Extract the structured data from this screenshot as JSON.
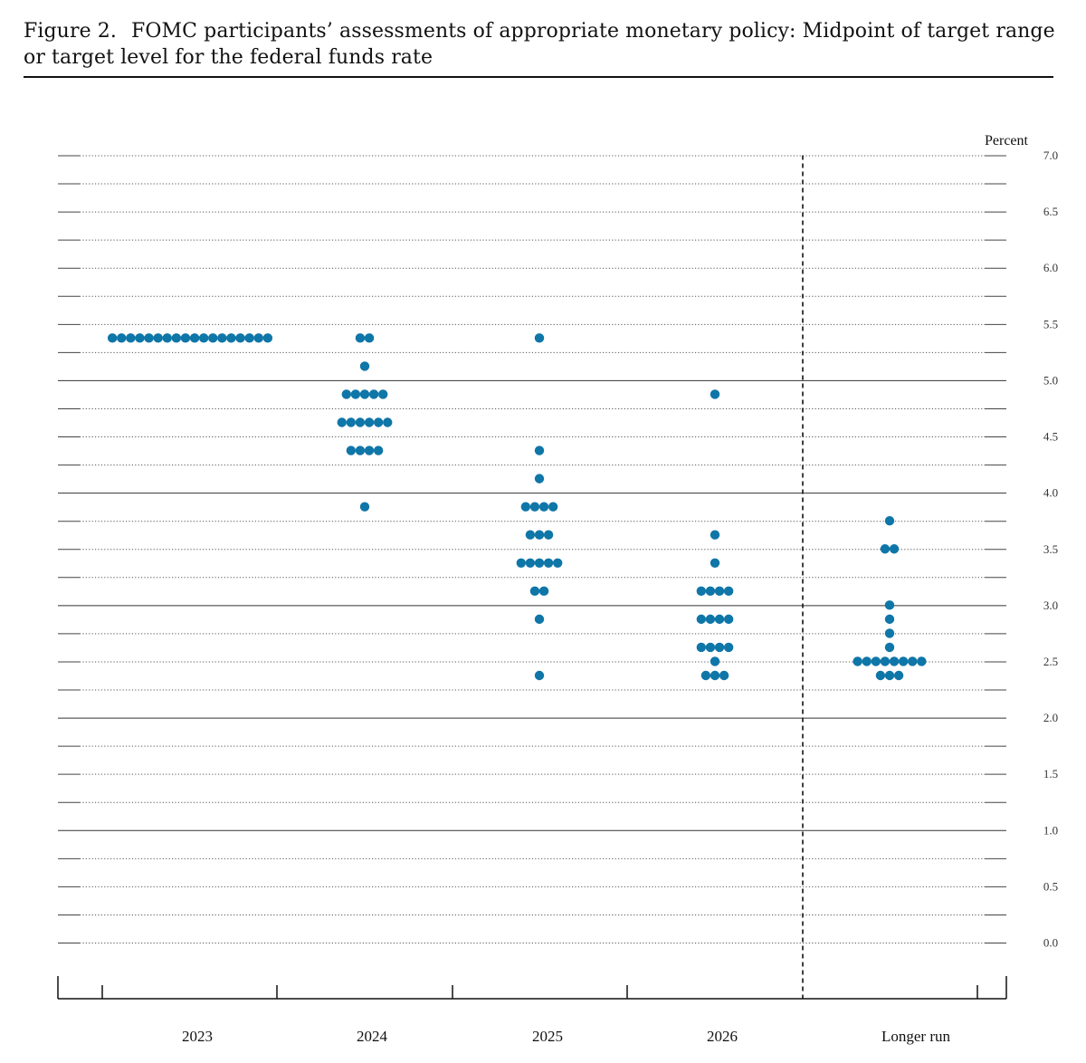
{
  "figure": {
    "number": "Figure 2.",
    "title": "FOMC participants’ assessments of appropriate monetary policy: Midpoint of target range or target level for the federal funds rate"
  },
  "chart_data": {
    "type": "scatter",
    "ylabel": "Percent",
    "ylim": [
      0,
      7
    ],
    "yticks": [
      "7.0",
      "6.5",
      "6.0",
      "5.5",
      "5.0",
      "4.5",
      "4.0",
      "3.5",
      "3.0",
      "2.5",
      "2.0",
      "1.5",
      "1.0",
      "0.5",
      "0.0"
    ],
    "categories": [
      "2023",
      "2024",
      "2025",
      "2026",
      "Longer run"
    ],
    "dot_color": "#0f76a8",
    "series": [
      {
        "category": "2023",
        "points": [
          {
            "y": 5.375,
            "count": 18
          }
        ]
      },
      {
        "category": "2024",
        "points": [
          {
            "y": 5.375,
            "count": 2
          },
          {
            "y": 5.125,
            "count": 1
          },
          {
            "y": 4.875,
            "count": 5
          },
          {
            "y": 4.625,
            "count": 6
          },
          {
            "y": 4.375,
            "count": 4
          },
          {
            "y": 3.875,
            "count": 1
          }
        ]
      },
      {
        "category": "2025",
        "points": [
          {
            "y": 5.375,
            "count": 1
          },
          {
            "y": 4.375,
            "count": 1
          },
          {
            "y": 4.125,
            "count": 1
          },
          {
            "y": 3.875,
            "count": 4
          },
          {
            "y": 3.625,
            "count": 3
          },
          {
            "y": 3.375,
            "count": 5
          },
          {
            "y": 3.125,
            "count": 2
          },
          {
            "y": 2.875,
            "count": 1
          },
          {
            "y": 2.375,
            "count": 1
          }
        ]
      },
      {
        "category": "2026",
        "points": [
          {
            "y": 4.875,
            "count": 1
          },
          {
            "y": 3.625,
            "count": 1
          },
          {
            "y": 3.375,
            "count": 1
          },
          {
            "y": 3.125,
            "count": 4
          },
          {
            "y": 2.875,
            "count": 4
          },
          {
            "y": 2.625,
            "count": 4
          },
          {
            "y": 2.5,
            "count": 1
          },
          {
            "y": 2.375,
            "count": 3
          }
        ]
      },
      {
        "category": "Longer run",
        "points": [
          {
            "y": 3.75,
            "count": 1
          },
          {
            "y": 3.5,
            "count": 2
          },
          {
            "y": 3.0,
            "count": 1
          },
          {
            "y": 2.875,
            "count": 1
          },
          {
            "y": 2.75,
            "count": 1
          },
          {
            "y": 2.625,
            "count": 1
          },
          {
            "y": 2.5,
            "count": 8
          },
          {
            "y": 2.375,
            "count": 3
          }
        ]
      }
    ]
  }
}
